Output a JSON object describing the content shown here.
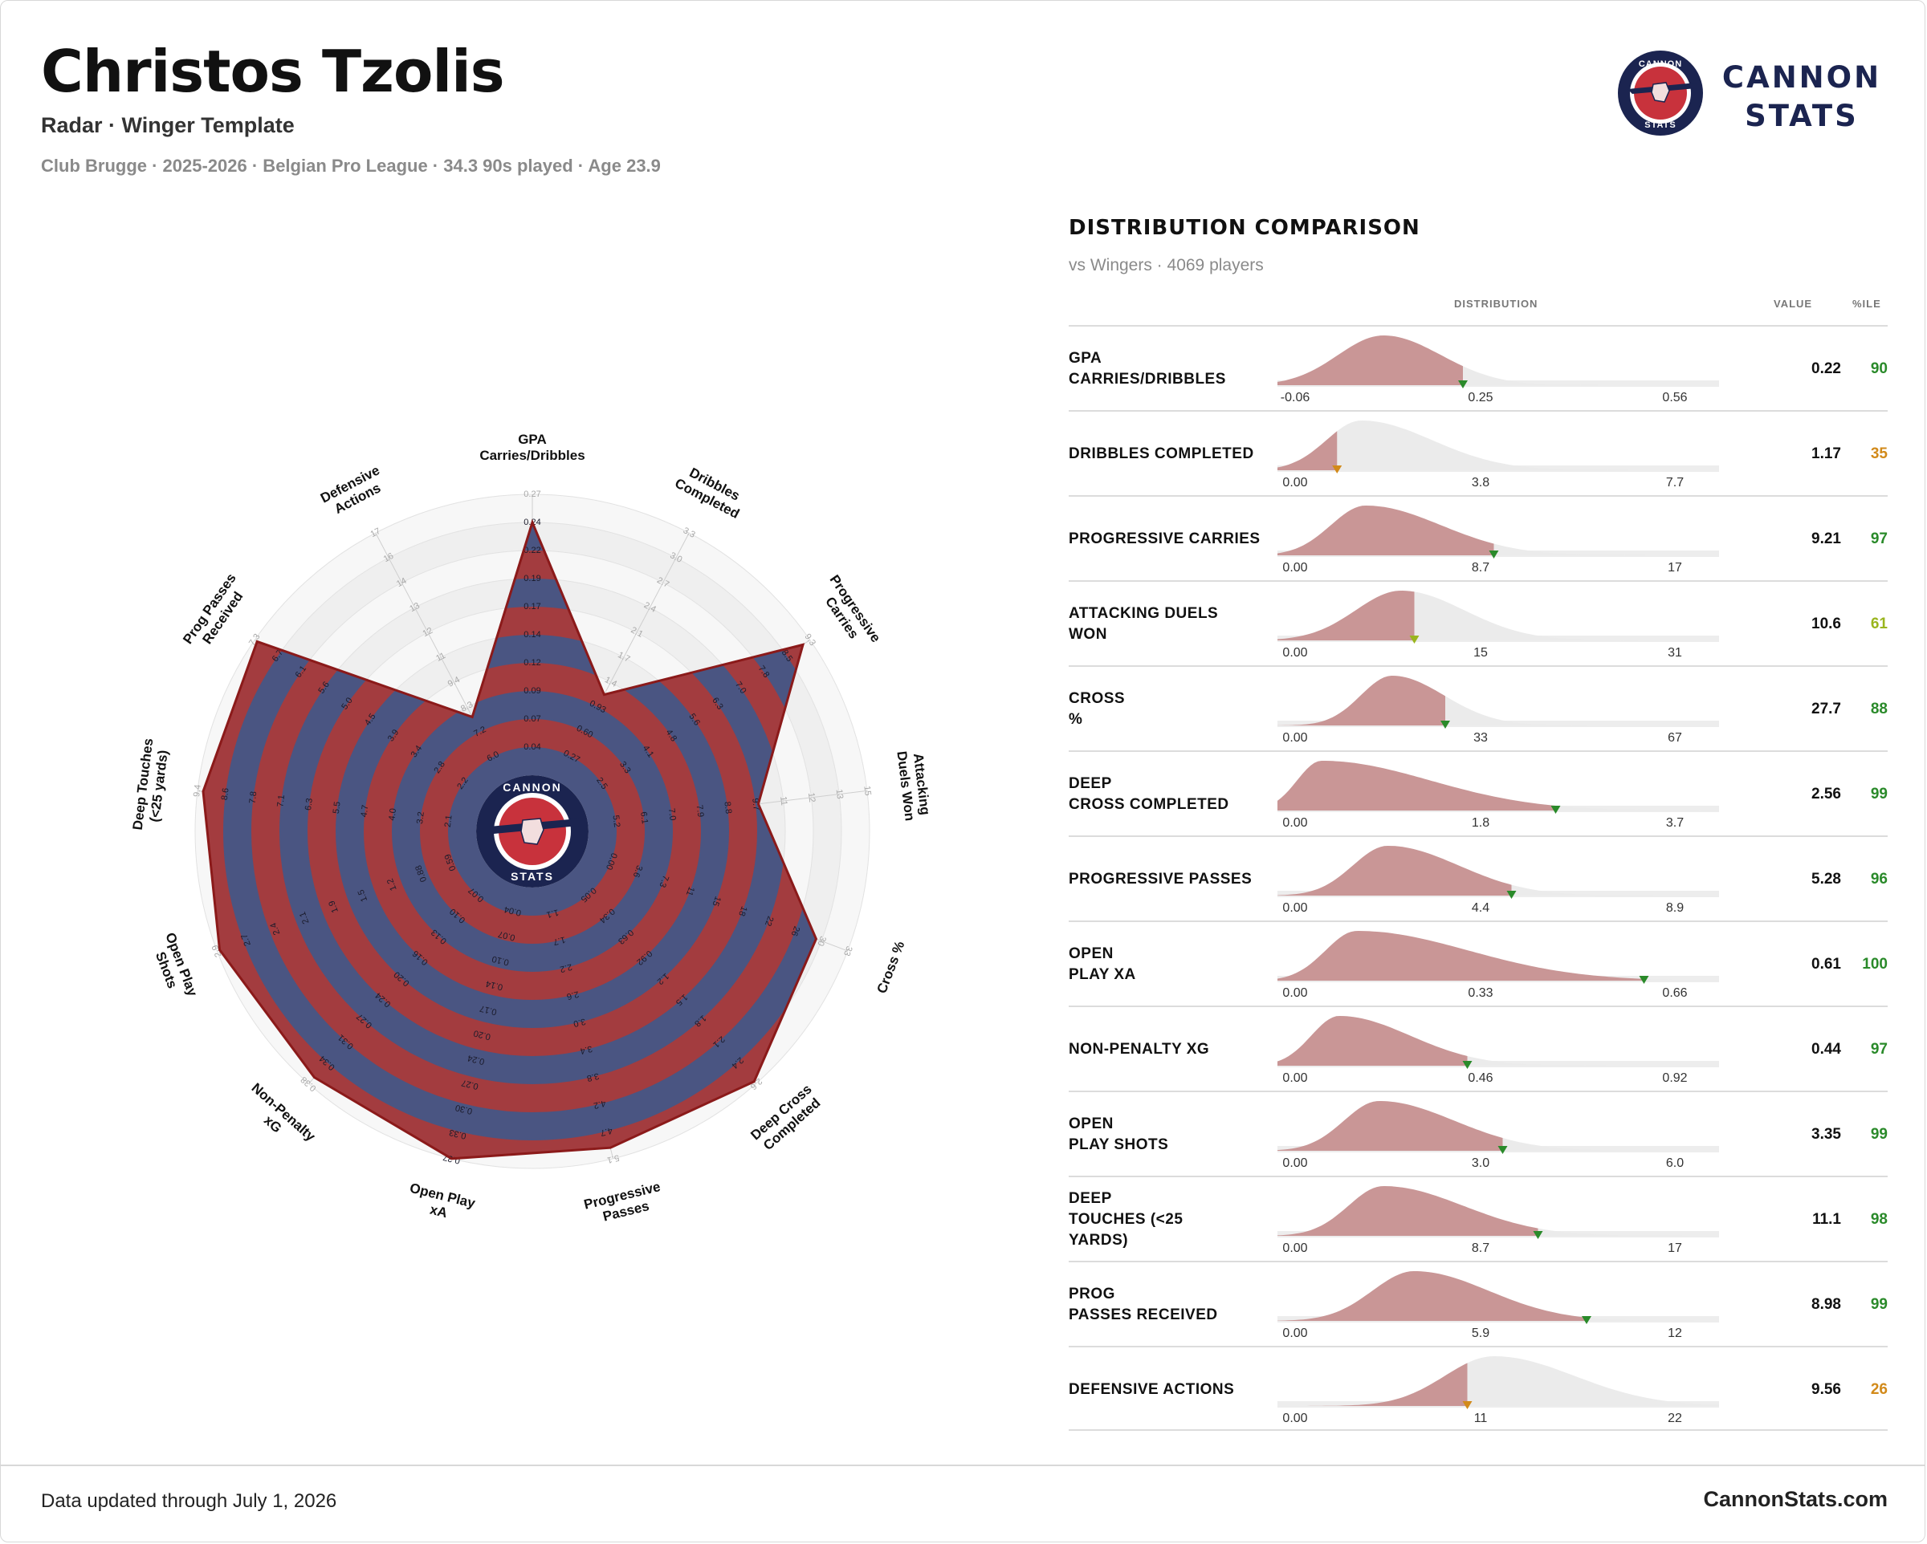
{
  "header": {
    "player_name": "Christos Tzolis",
    "subtitle": "Radar · Winger Template",
    "meta": "Club Brugge · 2025-2026 · Belgian Pro League · 34.3 90s played · Age 23.9"
  },
  "brand": {
    "name_line1": "CANNON",
    "name_line2": "STATS",
    "badge_top": "CANNON",
    "badge_bottom": "STATS",
    "colors": {
      "navy": "#1b2450",
      "red": "#c8323c",
      "radar_red": "#a33c3f",
      "radar_blue": "#4a5582"
    }
  },
  "distribution": {
    "title": "DISTRIBUTION COMPARISON",
    "subtitle": "vs Wingers · 4069 players",
    "col_distribution": "DISTRIBUTION",
    "col_value": "VALUE",
    "col_pctile": "%ILE"
  },
  "footer": {
    "updated": "Data updated through July 1, 2026",
    "site": "CannonStats.com"
  },
  "chart_data": [
    {
      "type": "radar",
      "metrics": [
        {
          "label": [
            "GPA",
            "Carries/Dribbles"
          ],
          "value": 0.22,
          "percentile": 90,
          "ticks": [
            "0.04",
            "0.07",
            "0.09",
            "0.12",
            "0.14",
            "0.17",
            "0.19",
            "0.22",
            "0.24",
            "0.27"
          ]
        },
        {
          "label": [
            "Dribbles",
            "Completed"
          ],
          "value": 1.17,
          "percentile": 35,
          "ticks": [
            "0.27",
            "0.60",
            "0.93",
            "1.4",
            "1.7",
            "2.1",
            "2.4",
            "2.7",
            "3.0",
            "3.3"
          ]
        },
        {
          "label": [
            "Progressive",
            "Carries"
          ],
          "value": 9.21,
          "percentile": 97,
          "ticks": [
            "2.5",
            "3.3",
            "4.1",
            "4.8",
            "5.6",
            "6.3",
            "7.0",
            "7.8",
            "8.5",
            "9.3"
          ]
        },
        {
          "label": [
            "Attacking",
            "Duels Won"
          ],
          "value": 10.6,
          "percentile": 61,
          "ticks": [
            "5.2",
            "6.1",
            "7.0",
            "7.9",
            "8.8",
            "9.7",
            "11",
            "12",
            "13",
            "15"
          ]
        },
        {
          "label": [
            "Cross %"
          ],
          "value": 27.7,
          "percentile": 88,
          "ticks": [
            "0.00",
            "3.6",
            "7.3",
            "11",
            "15",
            "18",
            "22",
            "26",
            "30",
            "33"
          ]
        },
        {
          "label": [
            "Deep Cross",
            "Completed"
          ],
          "value": 2.56,
          "percentile": 99,
          "ticks": [
            "0.05",
            "0.34",
            "0.63",
            "0.92",
            "1.2",
            "1.5",
            "1.8",
            "2.1",
            "2.4",
            "2.6"
          ]
        },
        {
          "label": [
            "Progressive",
            "Passes"
          ],
          "value": 5.28,
          "percentile": 96,
          "ticks": [
            "1.1",
            "1.7",
            "2.2",
            "2.6",
            "3.0",
            "3.4",
            "3.8",
            "4.2",
            "4.7",
            "5.1"
          ]
        },
        {
          "label": [
            "Open Play",
            "xA"
          ],
          "value": 0.61,
          "percentile": 100,
          "ticks": [
            "0.04",
            "0.07",
            "0.10",
            "0.14",
            "0.17",
            "0.20",
            "0.24",
            "0.27",
            "0.30",
            "0.33",
            "0.37"
          ]
        },
        {
          "label": [
            "Non-Penalty",
            "xG"
          ],
          "value": 0.44,
          "percentile": 97,
          "ticks": [
            "0.07",
            "0.10",
            "0.13",
            "0.16",
            "0.20",
            "0.24",
            "0.27",
            "0.31",
            "0.34",
            "0.38"
          ]
        },
        {
          "label": [
            "Open Play",
            "Shots"
          ],
          "value": 3.35,
          "percentile": 99,
          "ticks": [
            "0.59",
            "0.88",
            "1.2",
            "1.5",
            "1.9",
            "2.1",
            "2.4",
            "2.7",
            "2.9"
          ]
        },
        {
          "label": [
            "Deep Touches",
            "(<25 yards)"
          ],
          "value": 11.1,
          "percentile": 98,
          "ticks": [
            "2.1",
            "3.2",
            "4.0",
            "4.7",
            "5.5",
            "6.3",
            "7.1",
            "7.8",
            "8.6",
            "9.4"
          ]
        },
        {
          "label": [
            "Prog Passes",
            "Received"
          ],
          "value": 8.98,
          "percentile": 99,
          "ticks": [
            "2.2",
            "2.8",
            "3.4",
            "3.9",
            "4.5",
            "5.0",
            "5.6",
            "6.1",
            "6.7",
            "7.3"
          ]
        },
        {
          "label": [
            "Defensive",
            "Actions"
          ],
          "value": 9.56,
          "percentile": 26,
          "ticks": [
            "6.0",
            "7.2",
            "8.3",
            "9.4",
            "11",
            "12",
            "13",
            "14",
            "16",
            "17"
          ]
        }
      ]
    },
    {
      "type": "distribution",
      "rows": [
        {
          "label": [
            "GPA",
            "CARRIES/DRIBBLES"
          ],
          "value": "0.22",
          "percentile": 90,
          "pct_color": "#2a8a2a",
          "ticks": [
            "-0.06",
            "0.25",
            "0.56"
          ],
          "marker": 0.42,
          "peak": 0.24,
          "spread": 0.13,
          "skew": 1.0
        },
        {
          "label": [
            "DRIBBLES COMPLETED"
          ],
          "value": "1.17",
          "percentile": 35,
          "pct_color": "#d28a1a",
          "ticks": [
            "0.00",
            "3.8",
            "7.7"
          ],
          "marker": 0.135,
          "peak": 0.19,
          "spread": 0.1,
          "skew": 1.6
        },
        {
          "label": [
            "PROGRESSIVE CARRIES"
          ],
          "value": "9.21",
          "percentile": 97,
          "pct_color": "#2a8a2a",
          "ticks": [
            "0.00",
            "8.7",
            "17"
          ],
          "marker": 0.49,
          "peak": 0.2,
          "spread": 0.1,
          "skew": 1.7
        },
        {
          "label": [
            "ATTACKING DUELS",
            "WON"
          ],
          "value": "10.6",
          "percentile": 61,
          "pct_color": "#9ab51e",
          "ticks": [
            "0.00",
            "15",
            "31"
          ],
          "marker": 0.31,
          "peak": 0.28,
          "spread": 0.13,
          "skew": 1.1
        },
        {
          "label": [
            "CROSS",
            "%"
          ],
          "value": "27.7",
          "percentile": 88,
          "pct_color": "#2a8a2a",
          "ticks": [
            "0.00",
            "33",
            "67"
          ],
          "marker": 0.38,
          "peak": 0.26,
          "spread": 0.09,
          "skew": 1.3
        },
        {
          "label": [
            "DEEP",
            "CROSS COMPLETED"
          ],
          "value": "2.56",
          "percentile": 99,
          "pct_color": "#2a8a2a",
          "ticks": [
            "0.00",
            "1.8",
            "3.7"
          ],
          "marker": 0.63,
          "peak": 0.1,
          "spread": 0.07,
          "skew": 3.5
        },
        {
          "label": [
            "PROGRESSIVE PASSES"
          ],
          "value": "5.28",
          "percentile": 96,
          "pct_color": "#2a8a2a",
          "ticks": [
            "0.00",
            "4.4",
            "8.9"
          ],
          "marker": 0.53,
          "peak": 0.25,
          "spread": 0.1,
          "skew": 1.6
        },
        {
          "label": [
            "OPEN",
            "PLAY XA"
          ],
          "value": "0.61",
          "percentile": 100,
          "pct_color": "#2a8a2a",
          "ticks": [
            "0.00",
            "0.33",
            "0.66"
          ],
          "marker": 0.83,
          "peak": 0.18,
          "spread": 0.09,
          "skew": 2.8
        },
        {
          "label": [
            "NON-PENALTY XG"
          ],
          "value": "0.44",
          "percentile": 97,
          "pct_color": "#2a8a2a",
          "ticks": [
            "0.00",
            "0.46",
            "0.92"
          ],
          "marker": 0.43,
          "peak": 0.14,
          "spread": 0.08,
          "skew": 2.0
        },
        {
          "label": [
            "OPEN",
            "PLAY SHOTS"
          ],
          "value": "3.35",
          "percentile": 99,
          "pct_color": "#2a8a2a",
          "ticks": [
            "0.00",
            "3.0",
            "6.0"
          ],
          "marker": 0.51,
          "peak": 0.23,
          "spread": 0.1,
          "skew": 1.7
        },
        {
          "label": [
            "DEEP",
            "TOUCHES (<25",
            "YARDS)"
          ],
          "value": "11.1",
          "percentile": 98,
          "pct_color": "#2a8a2a",
          "ticks": [
            "0.00",
            "8.7",
            "17"
          ],
          "marker": 0.59,
          "peak": 0.24,
          "spread": 0.1,
          "skew": 1.8
        },
        {
          "label": [
            "PROG",
            "PASSES RECEIVED"
          ],
          "value": "8.98",
          "percentile": 99,
          "pct_color": "#2a8a2a",
          "ticks": [
            "0.00",
            "5.9",
            "12"
          ],
          "marker": 0.7,
          "peak": 0.31,
          "spread": 0.12,
          "skew": 1.4
        },
        {
          "label": [
            "DEFENSIVE ACTIONS"
          ],
          "value": "9.56",
          "percentile": 26,
          "pct_color": "#d28a1a",
          "ticks": [
            "0.00",
            "11",
            "22"
          ],
          "marker": 0.43,
          "peak": 0.49,
          "spread": 0.14,
          "skew": 1.3
        }
      ]
    }
  ]
}
